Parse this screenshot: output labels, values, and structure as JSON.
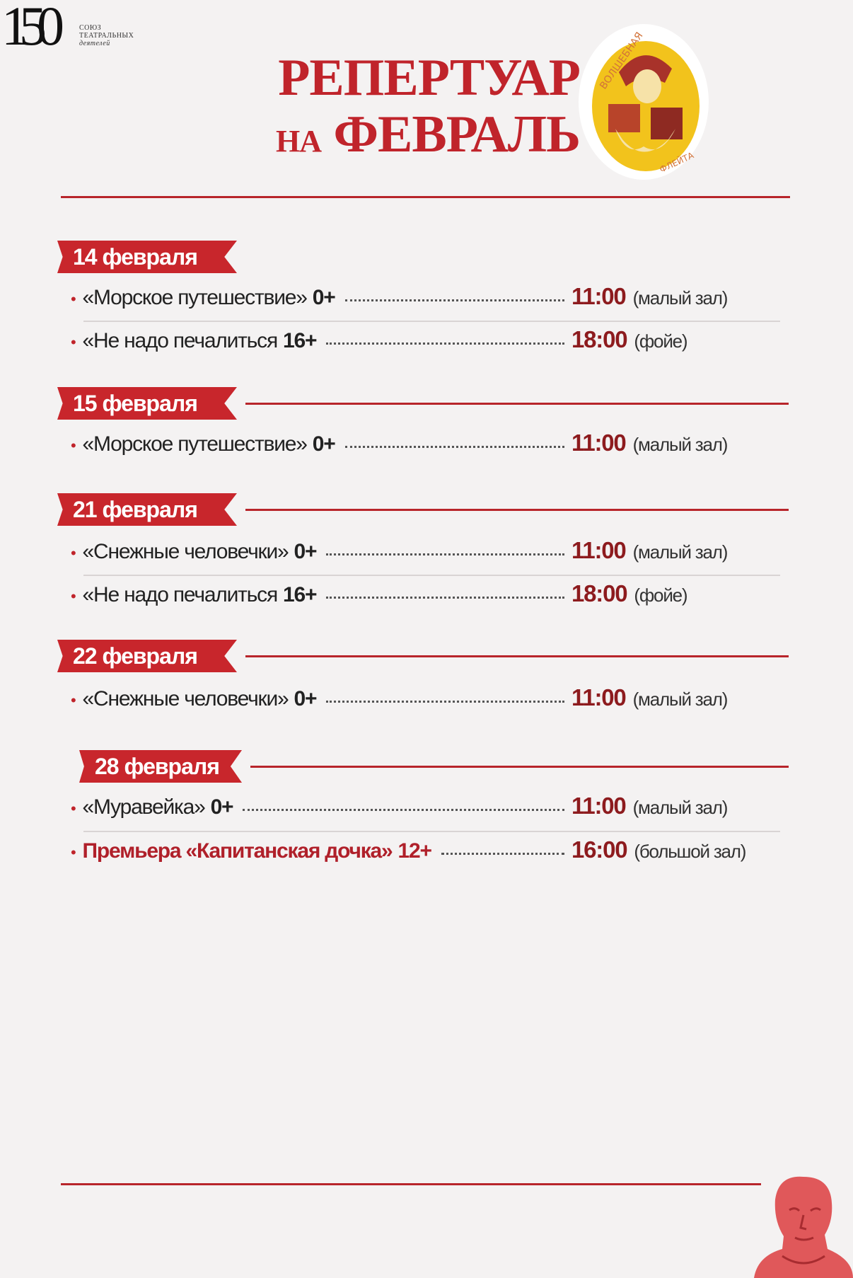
{
  "jubilee": {
    "number": "150",
    "text_lines": [
      "СОЮЗ",
      "ТЕАТРАЛЬНЫХ",
      "деятелей"
    ]
  },
  "title": {
    "line1": "РЕПЕРТУАР",
    "line2_prefix": "НА",
    "line2_main": "ФЕВРАЛЬ"
  },
  "logo": {
    "text": "Волшебная флейта",
    "colors": {
      "yellow": "#f2c31c",
      "red": "#a8322a"
    }
  },
  "colors": {
    "accent": "#c0242b",
    "time": "#8d1b1e"
  },
  "sections": [
    {
      "date": "14 февраля",
      "events": [
        {
          "name": "«Морское путешествие»",
          "age": "0+",
          "time": "11:00",
          "place": "(малый зал)"
        },
        {
          "name": "«Не надо печалиться",
          "age": "16+",
          "time": "18:00",
          "place": "(фойе)"
        }
      ]
    },
    {
      "date": "15 февраля",
      "events": [
        {
          "name": "«Морское путешествие»",
          "age": "0+",
          "time": "11:00",
          "place": "(малый зал)"
        }
      ]
    },
    {
      "date": "21 февраля",
      "events": [
        {
          "name": "«Снежные человечки»",
          "age": "0+",
          "time": "11:00",
          "place": "(малый зал)"
        },
        {
          "name": "«Не надо печалиться",
          "age": "16+",
          "time": "18:00",
          "place": "(фойе)"
        }
      ]
    },
    {
      "date": "22 февраля",
      "events": [
        {
          "name": "«Снежные человечки»",
          "age": "0+",
          "time": "11:00",
          "place": "(малый зал)"
        }
      ]
    },
    {
      "date": "28 февраля",
      "events": [
        {
          "name": "«Муравейка»",
          "age": "0+",
          "time": "11:00",
          "place": "(малый зал)"
        },
        {
          "name": "Премьера «Капитанская дочка»",
          "age": "12+",
          "time": "16:00",
          "place": "(большой зал)",
          "premiere": true
        }
      ]
    }
  ]
}
